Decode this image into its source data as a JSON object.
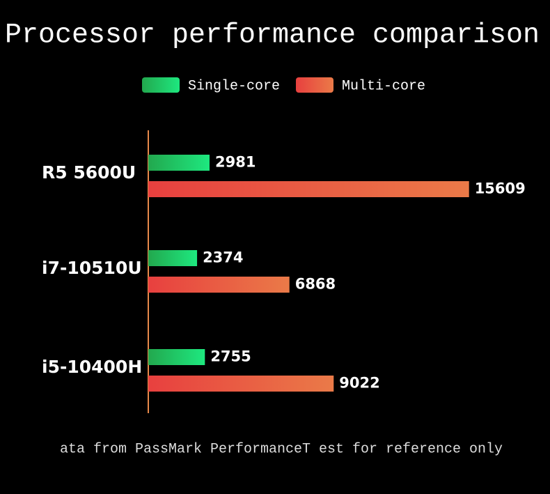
{
  "chart_data": {
    "type": "hbar",
    "title": "Processor performance comparison",
    "categories": [
      "R5 5600U",
      "i7-10510U",
      "i5-10400H"
    ],
    "series": [
      {
        "name": "Single-core",
        "color": "#1ee87f",
        "values": [
          2981,
          2374,
          2755
        ]
      },
      {
        "name": "Multi-core",
        "color": "#ea7a48",
        "values": [
          15609,
          6868,
          9022
        ]
      }
    ],
    "xlim": [
      0,
      16500
    ],
    "footnote": "ata from PassMark PerformanceT est for reference only"
  }
}
